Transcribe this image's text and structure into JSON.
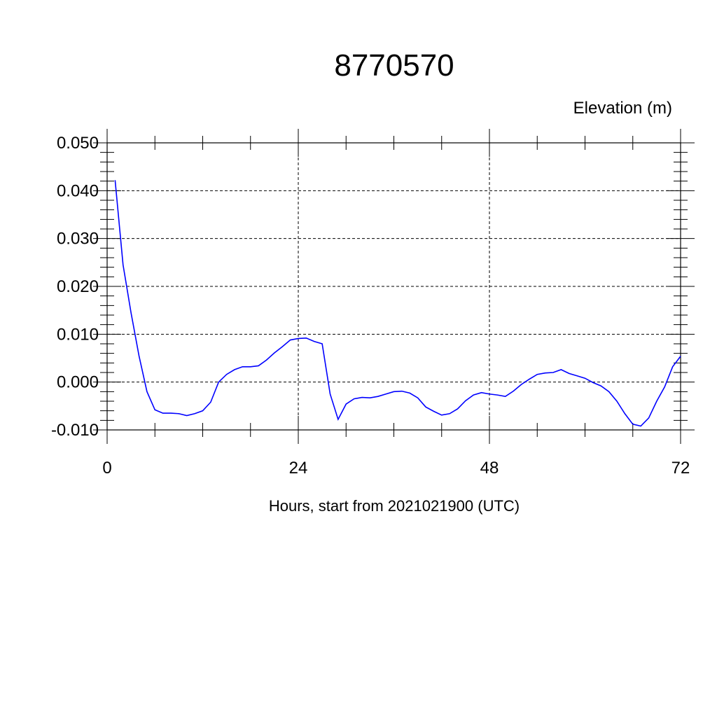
{
  "chart_data": {
    "type": "line",
    "title": "8770570",
    "subtitle": "Elevation (m)",
    "xlabel": "Hours, start from 2021021900 (UTC)",
    "ylabel": "",
    "xlim": [
      0,
      72
    ],
    "ylim": [
      -0.01,
      0.05
    ],
    "x_ticks": [
      0,
      24,
      48,
      72
    ],
    "x_tick_labels": [
      "0",
      "24",
      "48",
      "72"
    ],
    "y_ticks": [
      -0.01,
      0.0,
      0.01,
      0.02,
      0.03,
      0.04,
      0.05
    ],
    "y_tick_labels": [
      "-0.010",
      "0.000",
      "0.010",
      "0.020",
      "0.030",
      "0.040",
      "0.050"
    ],
    "grid": true,
    "colors": {
      "series": "#0000ff",
      "axes": "#000000"
    },
    "series": [
      {
        "x": [
          1,
          2,
          3,
          4,
          5,
          6,
          7,
          8,
          9,
          10,
          11,
          12,
          13,
          14,
          15,
          16,
          17,
          18,
          19,
          20,
          21,
          22,
          23,
          24,
          25,
          26,
          27,
          28,
          29,
          30,
          31,
          32,
          33,
          34,
          35,
          36,
          37,
          38,
          39,
          40,
          41,
          42,
          43,
          44,
          45,
          46,
          47,
          48,
          49,
          50,
          51,
          52,
          53,
          54,
          55,
          56,
          57,
          58,
          59,
          60,
          61,
          62,
          63,
          64,
          65,
          66,
          67,
          68,
          69,
          70,
          71,
          72
        ],
        "values": [
          0.0422,
          0.0245,
          0.0145,
          0.0055,
          -0.002,
          -0.0058,
          -0.0065,
          -0.0065,
          -0.0066,
          -0.007,
          -0.0066,
          -0.006,
          -0.0042,
          0.0,
          0.0016,
          0.0026,
          0.0032,
          0.0032,
          0.0034,
          0.0046,
          0.0061,
          0.0074,
          0.0088,
          0.0091,
          0.0092,
          0.0085,
          0.008,
          -0.0025,
          -0.0078,
          -0.0046,
          -0.0035,
          -0.0032,
          -0.0033,
          -0.003,
          -0.0025,
          -0.002,
          -0.0019,
          -0.0023,
          -0.0033,
          -0.0052,
          -0.0061,
          -0.0069,
          -0.0066,
          -0.0056,
          -0.0039,
          -0.0027,
          -0.0022,
          -0.0025,
          -0.0027,
          -0.003,
          -0.0019,
          -0.0005,
          0.0006,
          0.0016,
          0.0019,
          0.002,
          0.0026,
          0.0018,
          0.0013,
          0.0008,
          -0.0001,
          -0.0008,
          -0.002,
          -0.004,
          -0.0066,
          -0.0088,
          -0.0092,
          -0.0075,
          -0.004,
          -0.001,
          0.0032,
          0.0054
        ]
      }
    ]
  }
}
